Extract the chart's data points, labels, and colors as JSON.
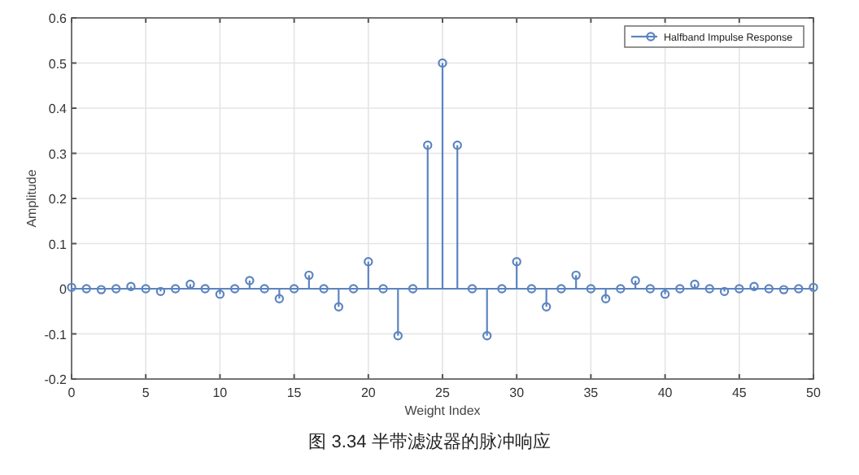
{
  "chart_data": {
    "type": "lollipop",
    "xlabel": "Weight Index",
    "ylabel": "Amplitude",
    "x": [
      0,
      1,
      2,
      3,
      4,
      5,
      6,
      7,
      8,
      9,
      10,
      11,
      12,
      13,
      14,
      15,
      16,
      17,
      18,
      19,
      20,
      21,
      22,
      23,
      24,
      25,
      26,
      27,
      28,
      29,
      30,
      31,
      32,
      33,
      34,
      35,
      36,
      37,
      38,
      39,
      40,
      41,
      42,
      43,
      44,
      45,
      46,
      47,
      48,
      49,
      50
    ],
    "series": [
      {
        "name": "Halfband Impulse Response",
        "color": "#5b84c0",
        "values": [
          0.003,
          0,
          -0.002,
          0,
          0.005,
          0,
          -0.006,
          0,
          0.01,
          0,
          -0.012,
          0,
          0.018,
          0,
          -0.022,
          0,
          0.03,
          0,
          -0.04,
          0,
          0.06,
          0,
          -0.104,
          0,
          0.318,
          0.5,
          0.318,
          0,
          -0.104,
          0,
          0.06,
          0,
          -0.04,
          0,
          0.03,
          0,
          -0.022,
          0,
          0.018,
          0,
          -0.012,
          0,
          0.01,
          0,
          -0.006,
          0,
          0.005,
          0,
          -0.002,
          0,
          0.003
        ]
      }
    ],
    "xlim": [
      0,
      50
    ],
    "ylim": [
      -0.2,
      0.6
    ],
    "xticks": [
      0,
      5,
      10,
      15,
      20,
      25,
      30,
      35,
      40,
      45,
      50
    ],
    "yticks": [
      -0.2,
      -0.1,
      0,
      0.1,
      0.2,
      0.3,
      0.4,
      0.5,
      0.6
    ],
    "ref_lines": [
      {
        "axis": "y",
        "value": 0,
        "color": "#5b84c0"
      }
    ],
    "grid": true,
    "legend": "top right",
    "marker": "circle",
    "annotations": [
      "图 3.34 半带滤波器的脉冲响应"
    ]
  }
}
